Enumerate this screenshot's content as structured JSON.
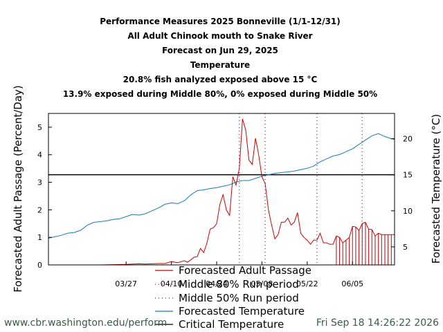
{
  "footer": {
    "url": "www.cbr.washington.edu/perform",
    "timestamp": "Fri Sep 18 14:26:22 2026"
  },
  "colors": {
    "passage": "#cc0000",
    "temperature": "#1a7ab0",
    "critical": "#000000",
    "run_period": "#9b30d0",
    "footer": "#3a5a4a"
  },
  "chart_data": {
    "type": "line",
    "title_lines": [
      "Performance Measures 2025 Bonneville (1/1-12/31)",
      "All Adult Chinook mouth to Snake River",
      "Forecast on Jun 29, 2025",
      "Temperature",
      "20.8% fish analyzed exposed above 15 °C",
      "13.9% exposed during Middle 80%, 0% exposed during Middle 50%"
    ],
    "ylabel": "Forecasted Adult Passage (Percent/Day)",
    "y2label": "Forecasted Temperature (°C)",
    "x_tick_labels": [
      "03/27",
      "04/10",
      "04/24",
      "05/08",
      "05/22",
      "06/05"
    ],
    "x_tick_days": [
      86,
      100,
      114,
      128,
      142,
      156
    ],
    "xlim_day": [
      62,
      169
    ],
    "ylim": [
      0,
      5.5
    ],
    "y_ticks": [
      0,
      1,
      2,
      3,
      4,
      5
    ],
    "y2lim": [
      2.5,
      23.5
    ],
    "y2_ticks": [
      5,
      10,
      15,
      20
    ],
    "critical_temperature": 15,
    "middle_80_days": [
      145,
      159
    ],
    "middle_50_days": [
      121,
      129
    ],
    "forecast_start_day": 151,
    "legend": {
      "placement": "bottom",
      "entries": [
        {
          "label": "Forecasted Adult Passage",
          "style": "line",
          "color": "#cc0000"
        },
        {
          "label": "Middle 80% Run period",
          "style": "dotted",
          "color": "#9b30d0"
        },
        {
          "label": "Middle 50% Run period",
          "style": "dotted",
          "color": "#9b30d0"
        },
        {
          "label": "Forecasted Temperature",
          "style": "line",
          "color": "#1a7ab0"
        },
        {
          "label": "Critical Temperature",
          "style": "line",
          "color": "#000000"
        }
      ]
    },
    "series": [
      {
        "key": "passage",
        "axis": "left",
        "x": [
          62,
          66,
          70,
          74,
          78,
          82,
          86,
          88,
          90,
          92,
          94,
          96,
          98,
          100,
          101,
          102,
          103,
          104,
          105,
          106,
          107,
          108,
          109,
          110,
          111,
          112,
          113,
          114,
          115,
          116,
          117,
          118,
          119,
          120,
          121,
          122,
          123,
          124,
          125,
          126,
          127,
          128,
          129,
          130,
          131,
          132,
          133,
          134,
          135,
          136,
          137,
          138,
          139,
          140,
          141,
          142,
          143,
          144,
          145,
          146,
          147,
          148,
          149,
          150,
          151,
          152,
          153,
          154,
          155,
          156,
          157,
          158,
          159,
          160,
          161,
          162,
          163,
          164,
          165,
          166,
          167,
          168,
          169
        ],
        "y": [
          0,
          0,
          0,
          0,
          0,
          0.01,
          0.02,
          0.03,
          0.04,
          0.03,
          0.04,
          0.05,
          0.05,
          0.12,
          0.1,
          0.08,
          0.12,
          0.15,
          0.1,
          0.18,
          0.28,
          0.3,
          0.6,
          0.45,
          0.8,
          1.3,
          1.35,
          1.5,
          2.2,
          2.55,
          2.0,
          1.8,
          3.2,
          2.9,
          3.5,
          5.3,
          4.9,
          3.8,
          3.65,
          4.6,
          4.0,
          3.2,
          2.95,
          2.0,
          1.45,
          0.95,
          1.1,
          1.55,
          1.55,
          1.7,
          1.45,
          1.55,
          1.9,
          1.15,
          1.0,
          0.9,
          0.75,
          0.9,
          0.9,
          1.15,
          0.8,
          0.8,
          0.75,
          0.75,
          1.05,
          1.0,
          0.8,
          0.9,
          1.0,
          1.4,
          1.38,
          1.25,
          1.5,
          1.55,
          1.3,
          1.28,
          1.05,
          1.15,
          1.1,
          1.1,
          1.1,
          1.1,
          1.1
        ]
      },
      {
        "key": "temperature",
        "axis": "right",
        "x": [
          62,
          64,
          66,
          68,
          70,
          72,
          74,
          76,
          78,
          80,
          82,
          84,
          86,
          88,
          90,
          92,
          94,
          96,
          98,
          100,
          102,
          104,
          106,
          108,
          110,
          112,
          114,
          116,
          118,
          120,
          122,
          124,
          126,
          128,
          130,
          132,
          134,
          136,
          138,
          140,
          142,
          144,
          146,
          148,
          150,
          152,
          154,
          156,
          158,
          160,
          162,
          164,
          166,
          168,
          169
        ],
        "y": [
          6.2,
          6.4,
          6.6,
          6.9,
          7.0,
          7.3,
          8.0,
          8.4,
          8.5,
          8.6,
          8.8,
          8.9,
          9.2,
          9.5,
          9.4,
          9.6,
          10.0,
          10.4,
          10.9,
          11.1,
          11.0,
          11.4,
          12.2,
          12.8,
          12.9,
          13.1,
          13.2,
          13.4,
          13.6,
          14.0,
          14.2,
          14.2,
          14.5,
          14.8,
          15.0,
          15.2,
          15.3,
          15.4,
          15.5,
          15.7,
          15.9,
          16.2,
          16.8,
          17.2,
          17.6,
          17.8,
          18.2,
          18.6,
          19.2,
          19.8,
          20.4,
          20.7,
          20.3,
          20.0,
          19.9
        ]
      }
    ]
  }
}
